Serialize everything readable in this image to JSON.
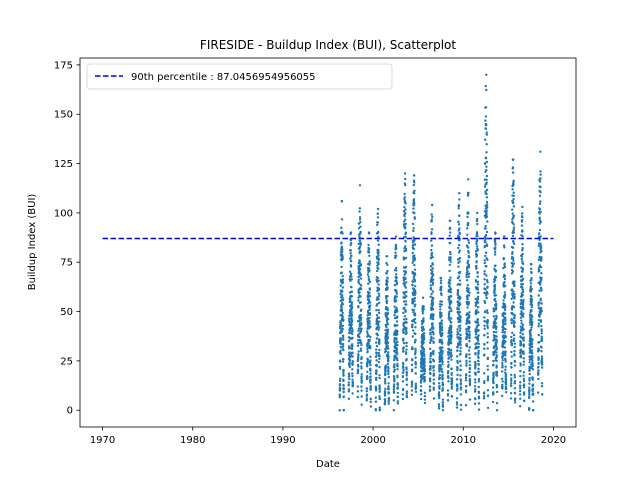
{
  "chart_data": {
    "type": "scatter",
    "title": "FIRESIDE - Buildup Index (BUI), Scatterplot",
    "xlabel": "Date",
    "ylabel": "Buildup Index (BUI)",
    "xlim": [
      1967.5,
      2022.5
    ],
    "ylim": [
      -8.5,
      178.5
    ],
    "xticks": [
      1970,
      1980,
      1990,
      2000,
      2010,
      2020
    ],
    "yticks": [
      0,
      25,
      50,
      75,
      100,
      125,
      150,
      175
    ],
    "grid": false,
    "legend": {
      "placement": "top-left",
      "entries": [
        "90th percentile : 87.0456954956055"
      ]
    },
    "reference_line": {
      "label": "90th percentile : 87.0456954956055",
      "y": 87.0456954956055,
      "x_range": [
        1970,
        2020
      ],
      "color": "#0000ff",
      "style": "dashed"
    },
    "series": [
      {
        "color": "#1f77b4",
        "seasons": [
          {
            "year": 1996,
            "x": [
              1996.3,
              1996.75
            ],
            "peak": 106,
            "min": 0
          },
          {
            "year": 1997,
            "x": [
              1997.3,
              1997.75
            ],
            "peak": 90,
            "min": 14
          },
          {
            "year": 1998,
            "x": [
              1998.3,
              1998.75
            ],
            "peak": 114,
            "min": 12
          },
          {
            "year": 1999,
            "x": [
              1999.3,
              1999.75
            ],
            "peak": 90,
            "min": 5
          },
          {
            "year": 2000,
            "x": [
              2000.3,
              2000.75
            ],
            "peak": 102,
            "min": 0
          },
          {
            "year": 2001,
            "x": [
              2001.3,
              2001.75
            ],
            "peak": 78,
            "min": 3
          },
          {
            "year": 2002,
            "x": [
              2002.3,
              2002.75
            ],
            "peak": 88,
            "min": 5
          },
          {
            "year": 2003,
            "x": [
              2003.3,
              2003.75
            ],
            "peak": 120,
            "min": 8
          },
          {
            "year": 2004,
            "x": [
              2004.3,
              2004.75
            ],
            "peak": 119,
            "min": 12
          },
          {
            "year": 2005,
            "x": [
              2005.3,
              2005.75
            ],
            "peak": 57,
            "min": 14
          },
          {
            "year": 2006,
            "x": [
              2006.3,
              2006.75
            ],
            "peak": 104,
            "min": 12
          },
          {
            "year": 2007,
            "x": [
              2007.3,
              2007.75
            ],
            "peak": 67,
            "min": 3
          },
          {
            "year": 2008,
            "x": [
              2008.3,
              2008.75
            ],
            "peak": 96,
            "min": 10
          },
          {
            "year": 2009,
            "x": [
              2009.3,
              2009.75
            ],
            "peak": 110,
            "min": 4
          },
          {
            "year": 2010,
            "x": [
              2010.3,
              2010.75
            ],
            "peak": 117,
            "min": 10
          },
          {
            "year": 2011,
            "x": [
              2011.3,
              2011.75
            ],
            "peak": 100,
            "min": 6
          },
          {
            "year": 2012,
            "x": [
              2012.3,
              2012.75
            ],
            "peak": 170,
            "min": 6
          },
          {
            "year": 2013,
            "x": [
              2013.3,
              2013.75
            ],
            "peak": 90,
            "min": 8
          },
          {
            "year": 2014,
            "x": [
              2014.3,
              2014.75
            ],
            "peak": 88,
            "min": 12
          },
          {
            "year": 2015,
            "x": [
              2015.3,
              2015.75
            ],
            "peak": 127,
            "min": 6
          },
          {
            "year": 2016,
            "x": [
              2016.3,
              2016.75
            ],
            "peak": 103,
            "min": 8
          },
          {
            "year": 2017,
            "x": [
              2017.3,
              2017.75
            ],
            "peak": 74,
            "min": 1
          },
          {
            "year": 2018,
            "x": [
              2018.3,
              2018.75
            ],
            "peak": 131,
            "min": 18
          }
        ]
      }
    ]
  }
}
